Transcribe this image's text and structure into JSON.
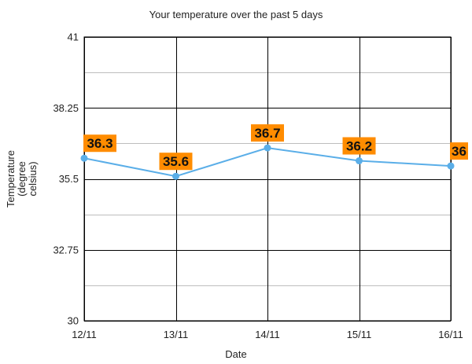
{
  "chart_data": {
    "type": "line",
    "title": "Your temperature over the past 5 days",
    "xlabel": "Date",
    "ylabel_lines": [
      "Temperature",
      "(degree",
      "celsius)"
    ],
    "categories": [
      "12/11",
      "13/11",
      "14/11",
      "15/11",
      "16/11"
    ],
    "series": [
      {
        "values": [
          36.3,
          35.6,
          36.7,
          36.2,
          36
        ],
        "labels": [
          "36.3",
          "35.6",
          "36.7",
          "36.2",
          "36"
        ],
        "color": "#5aaee8"
      }
    ],
    "ylim": [
      30,
      41
    ],
    "yticks": [
      30,
      32.75,
      35.5,
      38.25,
      41
    ],
    "ytick_labels": [
      "30",
      "32.75",
      "35.5",
      "38.25",
      "41"
    ],
    "y_minor_gridlines": [
      31.375,
      34.125,
      36.875,
      39.625
    ],
    "grid": true,
    "label_background": "#ff8c00"
  }
}
